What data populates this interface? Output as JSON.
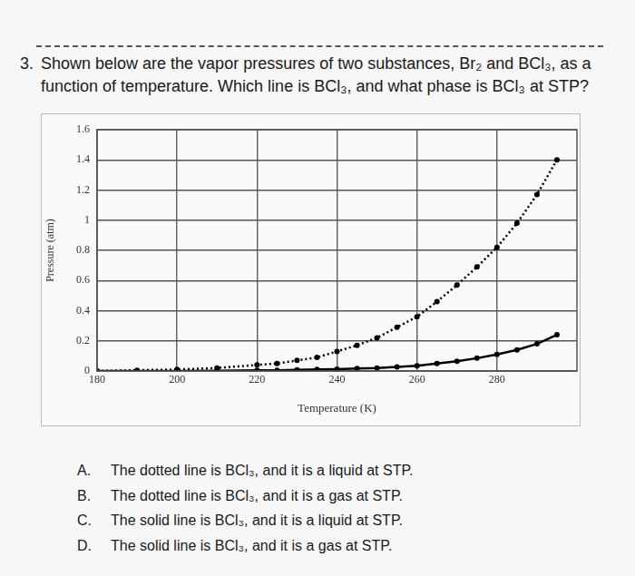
{
  "question": {
    "number": "3.",
    "lines": [
      "Shown below are the vapor pressures of two substances, Br₂ and BCl₃, as a",
      "function of temperature. Which line is BCl₃, and what phase is BCl₃ at STP?"
    ]
  },
  "chart_data": {
    "type": "line",
    "x_label": "Temperature (K)",
    "y_label": "Pressure (atm)",
    "x": [
      180,
      190,
      200,
      210,
      220,
      225,
      230,
      235,
      240,
      245,
      250,
      255,
      260,
      265,
      270,
      275,
      280,
      285,
      290,
      295
    ],
    "series": [
      {
        "color": "#000000",
        "line_style": "dotted",
        "marker": "circle",
        "values": [
          0,
          0.005,
          0.01,
          0.02,
          0.04,
          0.05,
          0.07,
          0.09,
          0.13,
          0.17,
          0.22,
          0.29,
          0.36,
          0.46,
          0.57,
          0.69,
          0.82,
          0.98,
          1.17,
          1.4
        ]
      },
      {
        "color": "#000000",
        "line_style": "solid",
        "marker": "circle",
        "values": [
          0,
          0,
          0,
          0.002,
          0.004,
          0.005,
          0.007,
          0.01,
          0.012,
          0.016,
          0.02,
          0.027,
          0.035,
          0.05,
          0.065,
          0.085,
          0.11,
          0.14,
          0.18,
          0.24
        ]
      }
    ],
    "xlim": [
      180,
      300
    ],
    "xticks": [
      180,
      200,
      220,
      240,
      260,
      280
    ],
    "ylim": [
      0,
      1.6
    ],
    "yticks": [
      0,
      0.2,
      0.4,
      0.6,
      0.8,
      1,
      1.2,
      1.4,
      1.6
    ],
    "grid": true
  },
  "choices": [
    {
      "letter": "A.",
      "text": "The dotted line is BCl₃, and it is a liquid at STP."
    },
    {
      "letter": "B.",
      "text": "The dotted line is BCl₃, and it is a gas at STP."
    },
    {
      "letter": "C.",
      "text": "The solid line is BCl₃, and it is a liquid at STP."
    },
    {
      "letter": "D.",
      "text": "The solid line is BCl₃, and it is a gas at STP."
    }
  ]
}
